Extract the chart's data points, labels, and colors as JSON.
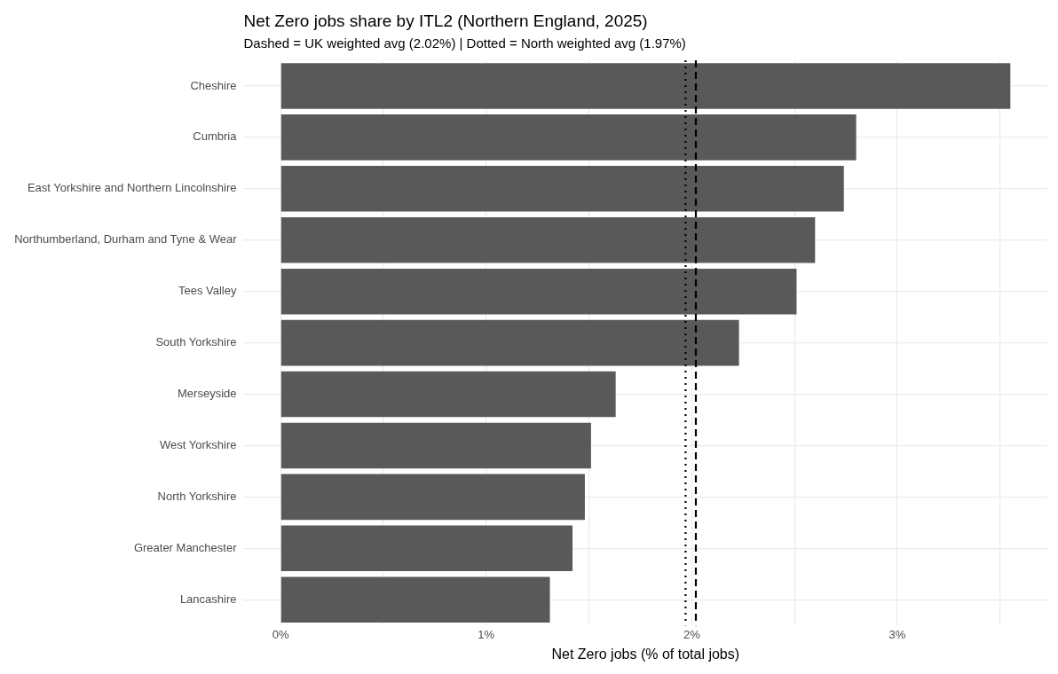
{
  "chart_data": {
    "type": "bar",
    "orientation": "horizontal",
    "title": "Net Zero jobs share by ITL2 (Northern England, 2025)",
    "subtitle": "Dashed = UK weighted avg (2.02%) | Dotted = North weighted avg (1.97%)",
    "xlabel": "Net Zero jobs (% of total jobs)",
    "categories": [
      "Cheshire",
      "Cumbria",
      "East Yorkshire and Northern Lincolnshire",
      "Northumberland, Durham and Tyne & Wear",
      "Tees Valley",
      "South Yorkshire",
      "Merseyside",
      "West Yorkshire",
      "North Yorkshire",
      "Greater Manchester",
      "Lancashire"
    ],
    "values": [
      3.55,
      2.8,
      2.74,
      2.6,
      2.51,
      2.23,
      1.63,
      1.51,
      1.48,
      1.42,
      1.31
    ],
    "color": "#595959",
    "xlim": [
      -0.18,
      3.73
    ],
    "xticks": [
      {
        "value": 0,
        "label": "0%"
      },
      {
        "value": 0.5,
        "label": null
      },
      {
        "value": 1,
        "label": "1%"
      },
      {
        "value": 1.5,
        "label": null
      },
      {
        "value": 2,
        "label": "2%"
      },
      {
        "value": 2.5,
        "label": null
      },
      {
        "value": 3,
        "label": "3%"
      },
      {
        "value": 3.5,
        "label": null
      }
    ],
    "ref_lines": [
      {
        "axis": "x",
        "value": 2.02,
        "color": "#000000",
        "line_style": "dashed"
      },
      {
        "axis": "x",
        "value": 1.97,
        "color": "#000000",
        "line_style": "dotted"
      }
    ],
    "grid": true,
    "legend": false
  }
}
